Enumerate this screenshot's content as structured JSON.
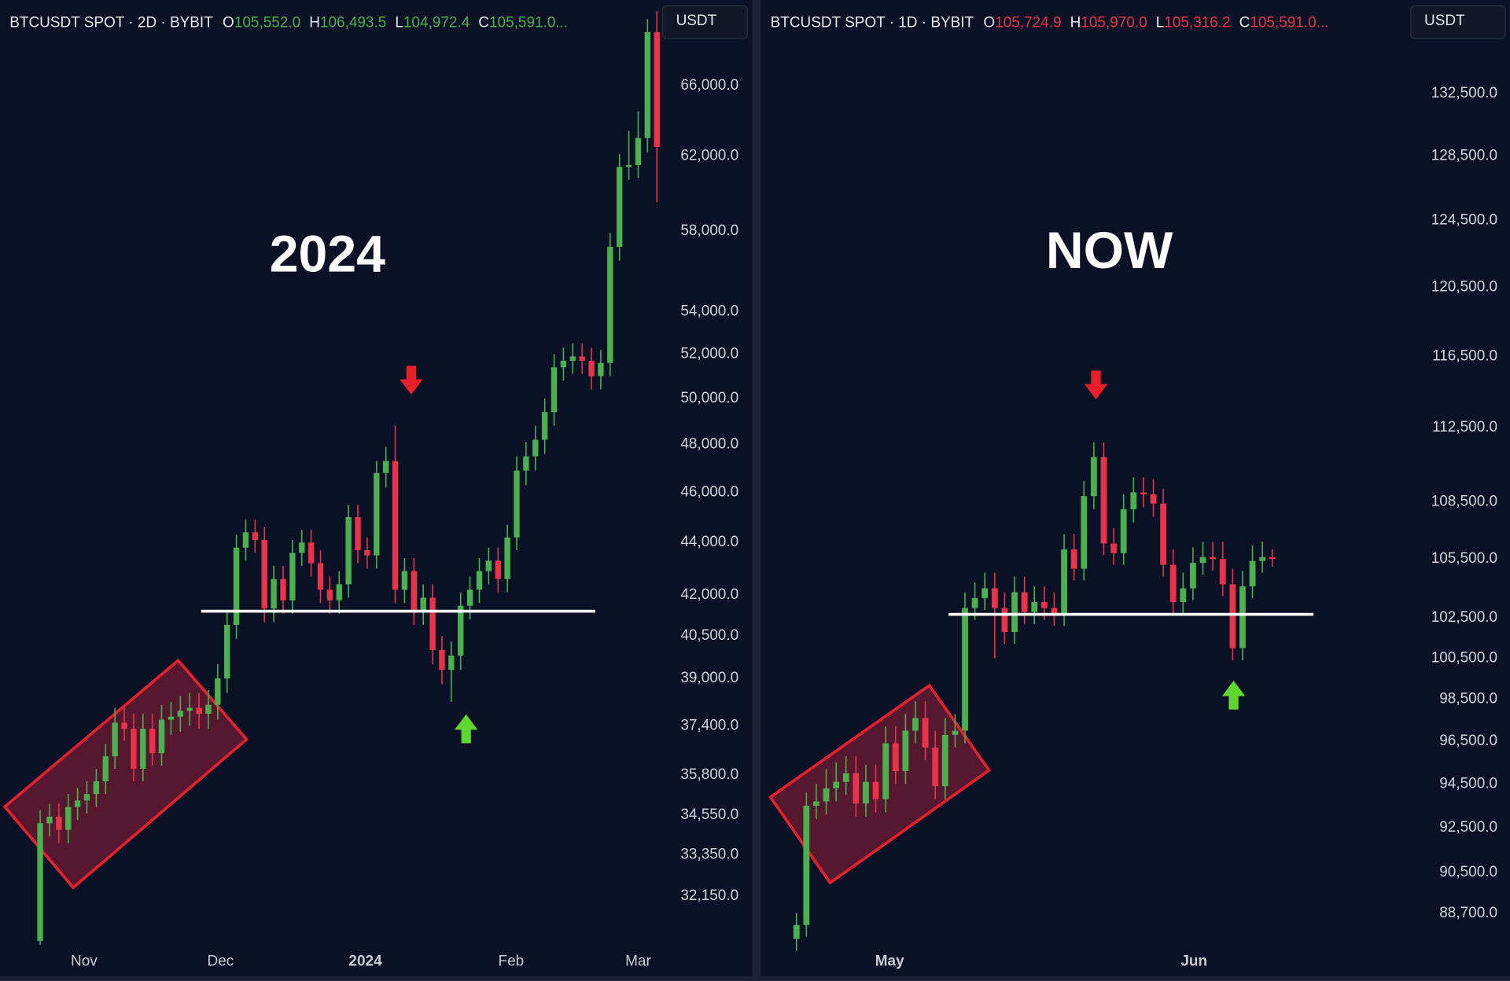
{
  "chart_data": [
    {
      "type": "candlestick",
      "title": "BTCUSDT SPOT · 2D · BYBIT",
      "ohlc": [
        {
          "label": "O",
          "value": "105,552.0"
        },
        {
          "label": "H",
          "value": "106,493.5"
        },
        {
          "label": "L",
          "value": "104,972.4"
        },
        {
          "label": "C",
          "value": "105,591.0..."
        }
      ],
      "ohlc_color": "#4caf50",
      "currency": "USDT",
      "annotation": "2024",
      "log_scale": true,
      "grid": false,
      "up_color": "#4caf50",
      "down_color": "#e8334a",
      "support": 41400,
      "x": [
        0,
        1,
        2,
        3,
        4,
        5,
        6,
        7,
        8,
        9,
        10,
        11,
        12,
        13,
        14,
        15,
        16,
        17,
        18,
        19,
        20,
        21,
        22,
        23,
        24,
        25,
        26,
        27,
        28,
        29,
        30,
        31,
        32,
        33,
        34,
        35,
        36,
        37,
        38,
        39,
        40,
        41,
        42,
        43,
        44,
        45,
        46,
        47,
        48,
        49,
        50,
        51,
        52,
        53,
        54,
        55,
        56,
        57,
        58,
        59,
        60,
        61,
        62,
        63,
        64,
        65,
        66
      ],
      "open": [
        30900,
        34300,
        34500,
        34100,
        34800,
        35000,
        35200,
        35600,
        36400,
        37500,
        37300,
        36000,
        37300,
        36500,
        37600,
        37700,
        37900,
        38000,
        37800,
        38100,
        39000,
        40900,
        43800,
        44400,
        44100,
        41500,
        42600,
        41800,
        43600,
        44000,
        43200,
        42200,
        41800,
        42400,
        45000,
        43700,
        43500,
        46800,
        47300,
        42200,
        42900,
        41400,
        41900,
        40000,
        39300,
        39800,
        41600,
        42200,
        42900,
        43300,
        42600,
        44200,
        46900,
        47500,
        48200,
        49400,
        51400,
        51700,
        51900,
        51700,
        51000,
        51600,
        57200,
        61400,
        61500,
        63000,
        69200
      ],
      "high": [
        34700,
        34900,
        34900,
        35200,
        35400,
        35600,
        36000,
        36800,
        38000,
        38000,
        37800,
        37800,
        37800,
        38100,
        38200,
        38400,
        38500,
        38500,
        38600,
        39500,
        41400,
        44300,
        44900,
        44900,
        44600,
        43100,
        43100,
        44100,
        44500,
        44500,
        43700,
        42700,
        42900,
        45500,
        45500,
        44200,
        47300,
        47900,
        48800,
        43400,
        43400,
        42400,
        42400,
        40500,
        40300,
        42100,
        42700,
        43400,
        43800,
        43800,
        44700,
        47500,
        48100,
        48800,
        50000,
        52000,
        52300,
        52500,
        52500,
        52300,
        52200,
        57900,
        62100,
        63400,
        64500,
        70000,
        70500
      ],
      "low": [
        30800,
        33900,
        33700,
        33700,
        34400,
        34600,
        34800,
        35200,
        36000,
        36900,
        35600,
        35600,
        36100,
        36100,
        37100,
        37200,
        37400,
        37300,
        37300,
        37600,
        38500,
        40400,
        43300,
        43600,
        41000,
        41000,
        41300,
        41300,
        43100,
        42700,
        41700,
        41300,
        41300,
        41900,
        43200,
        43000,
        43000,
        46200,
        41700,
        41700,
        40900,
        40900,
        39500,
        38800,
        38200,
        39300,
        41100,
        41700,
        42400,
        42100,
        42100,
        43700,
        46300,
        46900,
        47600,
        48800,
        50800,
        51100,
        51100,
        50400,
        50400,
        51000,
        56500,
        60700,
        60800,
        62200,
        59500
      ],
      "close": [
        34300,
        34500,
        34100,
        34800,
        35000,
        35200,
        35600,
        36400,
        37500,
        37300,
        36000,
        37300,
        36500,
        37600,
        37700,
        37900,
        38000,
        37800,
        38100,
        39000,
        40900,
        43800,
        44400,
        44100,
        41500,
        42600,
        41800,
        43600,
        44000,
        43200,
        42200,
        41800,
        42400,
        45000,
        43700,
        43500,
        46800,
        47300,
        42200,
        42900,
        41400,
        41900,
        40000,
        39300,
        39800,
        41600,
        42200,
        42900,
        43300,
        42600,
        44200,
        46900,
        47500,
        48200,
        49400,
        51400,
        51700,
        51900,
        51700,
        51000,
        51600,
        57200,
        61400,
        61500,
        63000,
        69200,
        62500
      ],
      "xlim": [
        -4.3,
        66.3
      ],
      "xticks": [
        {
          "value": 4.7,
          "label": "Nov"
        },
        {
          "value": 19.3,
          "label": "Dec"
        },
        {
          "value": 34.8,
          "label": "2024"
        },
        {
          "value": 50.4,
          "label": "Feb"
        },
        {
          "value": 64,
          "label": "Mar"
        }
      ],
      "ylim": [
        30700,
        71200
      ],
      "yticks": [
        {
          "value": 66000,
          "label": "66,000.0"
        },
        {
          "value": 62000,
          "label": "62,000.0"
        },
        {
          "value": 58000,
          "label": "58,000.0"
        },
        {
          "value": 54000,
          "label": "54,000.0"
        },
        {
          "value": 52000,
          "label": "52,000.0"
        },
        {
          "value": 50000,
          "label": "50,000.0"
        },
        {
          "value": 48000,
          "label": "48,000.0"
        },
        {
          "value": 46000,
          "label": "46,000.0"
        },
        {
          "value": 44000,
          "label": "44,000.0"
        },
        {
          "value": 42000,
          "label": "42,000.0"
        },
        {
          "value": 40500,
          "label": "40,500.0"
        },
        {
          "value": 39000,
          "label": "39,000.0"
        },
        {
          "value": 37400,
          "label": "37,400.0"
        },
        {
          "value": 35800,
          "label": "35,800.0"
        },
        {
          "value": 34550,
          "label": "34,550.0"
        },
        {
          "value": 33350,
          "label": "33,350.0"
        },
        {
          "value": 32150,
          "label": "32,150.0"
        }
      ]
    },
    {
      "type": "candlestick",
      "title": "BTCUSDT SPOT · 1D · BYBIT",
      "ohlc": [
        {
          "label": "O",
          "value": "105,724.9"
        },
        {
          "label": "H",
          "value": "105,970.0"
        },
        {
          "label": "L",
          "value": "105,316.2"
        },
        {
          "label": "C",
          "value": "105,591.0..."
        }
      ],
      "ohlc_color": "#e8334a",
      "currency": "USDT",
      "annotation": "NOW",
      "log_scale": true,
      "grid": false,
      "up_color": "#4caf50",
      "down_color": "#e8334a",
      "support": 102680,
      "x": [
        0,
        1,
        2,
        3,
        4,
        5,
        6,
        7,
        8,
        9,
        10,
        11,
        12,
        13,
        14,
        15,
        16,
        17,
        18,
        19,
        20,
        21,
        22,
        23,
        24,
        25,
        26,
        27,
        28,
        29,
        30,
        31,
        32,
        33,
        34,
        35,
        36,
        37,
        38,
        39,
        40,
        41,
        42,
        43,
        44,
        45,
        46,
        47,
        48
      ],
      "open": [
        87600,
        88200,
        93500,
        93700,
        94300,
        94600,
        95000,
        93600,
        94600,
        93800,
        96400,
        95100,
        97000,
        97600,
        96200,
        94400,
        96800,
        97000,
        103000,
        103500,
        104000,
        103000,
        101800,
        103800,
        102800,
        103300,
        103000,
        102700,
        106000,
        105000,
        108800,
        110900,
        106300,
        105800,
        108100,
        109000,
        108900,
        108400,
        105200,
        103300,
        104000,
        105300,
        105600,
        105500,
        104200,
        101000,
        104100,
        105400,
        105600
      ],
      "high": [
        88700,
        94100,
        94500,
        95200,
        95500,
        95800,
        95800,
        95400,
        95400,
        97200,
        97200,
        97800,
        98400,
        98400,
        97000,
        97600,
        97800,
        103800,
        104300,
        104800,
        104800,
        103800,
        104600,
        104600,
        104100,
        104100,
        103800,
        106800,
        106800,
        109600,
        111700,
        111700,
        107100,
        108900,
        109800,
        109800,
        109700,
        109200,
        106000,
        104800,
        106100,
        106400,
        106400,
        106400,
        105000,
        104900,
        106200,
        106400,
        106000
      ],
      "low": [
        87100,
        87700,
        92900,
        93100,
        93700,
        94000,
        93000,
        93000,
        93200,
        93200,
        94500,
        94500,
        96400,
        95600,
        93800,
        93800,
        96200,
        96400,
        102400,
        102900,
        100500,
        101200,
        101200,
        102200,
        102200,
        102400,
        102100,
        102100,
        104400,
        104400,
        108100,
        105700,
        105200,
        105200,
        107400,
        108200,
        107700,
        104600,
        102700,
        102700,
        103400,
        104700,
        104900,
        103600,
        100400,
        100400,
        103500,
        104800,
        105100
      ],
      "close": [
        88200,
        93500,
        93700,
        94300,
        94600,
        95000,
        93600,
        94600,
        93800,
        96400,
        95100,
        97000,
        97600,
        96200,
        94400,
        96800,
        97000,
        103000,
        103500,
        104000,
        103000,
        101800,
        103800,
        102800,
        103300,
        103000,
        102700,
        106000,
        105000,
        108800,
        110900,
        106300,
        105800,
        108100,
        109000,
        108900,
        108400,
        105200,
        103300,
        104000,
        105300,
        105600,
        105500,
        104200,
        101000,
        104100,
        105400,
        105600,
        105500
      ],
      "xlim": [
        -3.6,
        61
      ],
      "xticks": [
        {
          "value": 9.4,
          "label": "May"
        },
        {
          "value": 40.1,
          "label": "Jun"
        }
      ],
      "ylim": [
        87200,
        138700
      ],
      "yticks": [
        {
          "value": 132500,
          "label": "132,500.0"
        },
        {
          "value": 128500,
          "label": "128,500.0"
        },
        {
          "value": 124500,
          "label": "124,500.0"
        },
        {
          "value": 120500,
          "label": "120,500.0"
        },
        {
          "value": 116500,
          "label": "116,500.0"
        },
        {
          "value": 112500,
          "label": "112,500.0"
        },
        {
          "value": 108500,
          "label": "108,500.0"
        },
        {
          "value": 105500,
          "label": "105,500.0"
        },
        {
          "value": 102500,
          "label": "102,500.0"
        },
        {
          "value": 100500,
          "label": "100,500.0"
        },
        {
          "value": 98500,
          "label": "98,500.0"
        },
        {
          "value": 96500,
          "label": "96,500.0"
        },
        {
          "value": 94500,
          "label": "94,500.0"
        },
        {
          "value": 92500,
          "label": "92,500.0"
        },
        {
          "value": 90500,
          "label": "90,500.0"
        },
        {
          "value": 88700,
          "label": "88,700.0"
        }
      ]
    }
  ]
}
